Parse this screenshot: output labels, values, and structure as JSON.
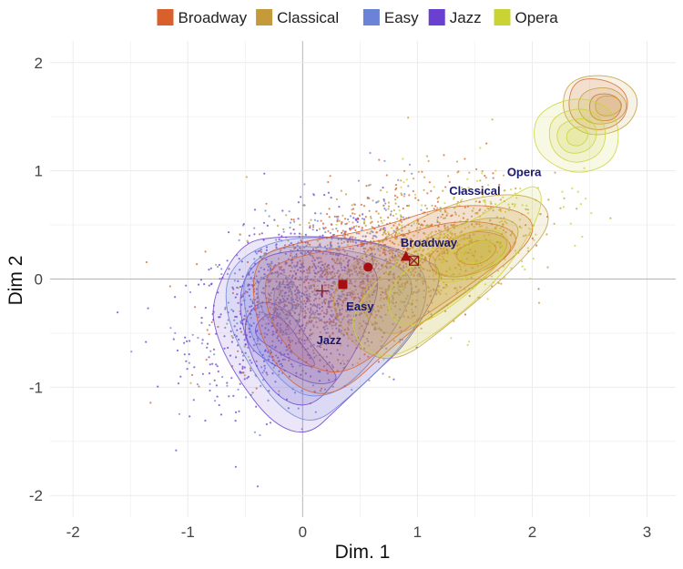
{
  "chart_data": {
    "type": "scatter",
    "title": "",
    "xlabel": "Dim. 1",
    "ylabel": "Dim 2",
    "xlim": [
      -2.2,
      3.25
    ],
    "ylim": [
      -2.2,
      2.2
    ],
    "x_ticks": [
      -2,
      -1,
      0,
      1,
      2,
      3
    ],
    "y_ticks": [
      -2,
      -1,
      0,
      1,
      2
    ],
    "x_tick_labels": [
      "-2",
      "-1",
      "0",
      "1",
      "2",
      "3"
    ],
    "y_tick_labels": [
      "-2",
      "-1",
      "0",
      "1",
      "2"
    ],
    "grid": true,
    "legend_position": "top",
    "series": [
      {
        "name": "Broadway",
        "color": "#d9602b",
        "centroid": [
          0.9,
          0.21
        ],
        "marker": "triangle"
      },
      {
        "name": "Classical",
        "color": "#c49a3a",
        "centroid": [
          0.57,
          0.11
        ],
        "marker": "circle"
      },
      {
        "name": "Easy",
        "color": "#6b83d6",
        "centroid": [
          0.35,
          -0.05
        ],
        "marker": "square"
      },
      {
        "name": "Jazz",
        "color": "#6a40d0",
        "centroid": [
          0.17,
          -0.11
        ],
        "marker": "plus"
      },
      {
        "name": "Opera",
        "color": "#c9d334",
        "centroid": [
          0.97,
          0.17
        ],
        "marker": "crossed-square"
      }
    ],
    "annotations": [
      {
        "text": "Opera",
        "x": 1.93,
        "y": 0.95
      },
      {
        "text": "Classical",
        "x": 1.5,
        "y": 0.78
      },
      {
        "text": "Broadway",
        "x": 1.1,
        "y": 0.3
      },
      {
        "text": "Easy",
        "x": 0.5,
        "y": -0.29
      },
      {
        "text": "Jazz",
        "x": 0.23,
        "y": -0.6
      }
    ],
    "density_contours": [
      {
        "series": "Jazz",
        "color": "#6a40d0",
        "levels": [
          [
            [
              -0.8,
              -0.2
            ],
            [
              -0.55,
              0.33
            ],
            [
              -0.2,
              0.4
            ],
            [
              0.5,
              0.38
            ],
            [
              1.05,
              0.2
            ],
            [
              1.25,
              0.05
            ],
            [
              0.95,
              -0.55
            ],
            [
              0.6,
              -0.9
            ],
            [
              0.3,
              -1.2
            ],
            [
              0.05,
              -1.45
            ],
            [
              -0.25,
              -1.35
            ],
            [
              -0.55,
              -0.95
            ],
            [
              -0.75,
              -0.55
            ]
          ],
          [
            [
              -0.58,
              -0.15
            ],
            [
              -0.4,
              0.2
            ],
            [
              0.0,
              0.28
            ],
            [
              0.45,
              0.22
            ],
            [
              0.7,
              0.05
            ],
            [
              0.55,
              -0.5
            ],
            [
              0.3,
              -0.95
            ],
            [
              0.05,
              -1.2
            ],
            [
              -0.22,
              -1.1
            ],
            [
              -0.45,
              -0.75
            ]
          ],
          [
            [
              -0.5,
              -0.35
            ],
            [
              -0.35,
              -0.18
            ],
            [
              -0.1,
              -0.3
            ],
            [
              0.08,
              -0.62
            ],
            [
              0.28,
              -0.85
            ],
            [
              0.3,
              -0.95
            ],
            [
              0.1,
              -0.98
            ],
            [
              -0.15,
              -0.85
            ],
            [
              -0.4,
              -0.7
            ],
            [
              -0.5,
              -0.55
            ]
          ],
          [
            [
              -0.4,
              -0.4
            ],
            [
              -0.28,
              -0.3
            ],
            [
              -0.12,
              -0.42
            ],
            [
              0.0,
              -0.62
            ],
            [
              0.12,
              -0.78
            ],
            [
              0.08,
              -0.82
            ],
            [
              -0.1,
              -0.75
            ],
            [
              -0.3,
              -0.62
            ],
            [
              -0.42,
              -0.52
            ]
          ]
        ]
      },
      {
        "series": "Easy",
        "color": "#6b83d6",
        "levels": [
          [
            [
              -0.65,
              0.1
            ],
            [
              -0.3,
              0.35
            ],
            [
              0.2,
              0.4
            ],
            [
              0.8,
              0.3
            ],
            [
              1.1,
              0.05
            ],
            [
              1.05,
              -0.35
            ],
            [
              0.8,
              -0.7
            ],
            [
              0.4,
              -1.1
            ],
            [
              0.1,
              -1.35
            ],
            [
              -0.2,
              -1.2
            ],
            [
              -0.5,
              -0.75
            ],
            [
              -0.68,
              -0.3
            ]
          ],
          [
            [
              -0.55,
              0.05
            ],
            [
              -0.25,
              0.3
            ],
            [
              0.2,
              0.3
            ],
            [
              0.7,
              0.2
            ],
            [
              1.0,
              0.0
            ],
            [
              0.85,
              -0.4
            ],
            [
              0.5,
              -0.9
            ],
            [
              0.2,
              -1.1
            ],
            [
              -0.1,
              -1.05
            ],
            [
              -0.45,
              -0.6
            ]
          ],
          [
            [
              -0.4,
              0.0
            ],
            [
              -0.2,
              0.08
            ],
            [
              -0.05,
              -0.05
            ],
            [
              0.0,
              -0.3
            ],
            [
              -0.1,
              -0.55
            ],
            [
              -0.25,
              -0.45
            ],
            [
              -0.38,
              -0.25
            ]
          ],
          [
            [
              -0.25,
              -0.05
            ],
            [
              -0.1,
              -0.05
            ],
            [
              -0.08,
              -0.25
            ],
            [
              -0.15,
              -0.4
            ],
            [
              -0.25,
              -0.3
            ]
          ]
        ]
      },
      {
        "series": "Broadway",
        "color": "#d9602b",
        "levels": [
          [
            [
              -0.45,
              0.2
            ],
            [
              0.0,
              0.35
            ],
            [
              0.6,
              0.45
            ],
            [
              1.3,
              0.7
            ],
            [
              1.9,
              0.65
            ],
            [
              2.05,
              0.45
            ],
            [
              1.8,
              0.15
            ],
            [
              1.3,
              -0.2
            ],
            [
              0.8,
              -0.6
            ],
            [
              0.3,
              -1.1
            ],
            [
              -0.1,
              -1.0
            ],
            [
              -0.4,
              -0.5
            ]
          ],
          [
            [
              -0.35,
              0.1
            ],
            [
              0.1,
              0.25
            ],
            [
              0.7,
              0.35
            ],
            [
              1.3,
              0.55
            ],
            [
              1.8,
              0.5
            ],
            [
              1.9,
              0.3
            ],
            [
              1.4,
              -0.1
            ],
            [
              0.9,
              -0.45
            ],
            [
              0.4,
              -0.9
            ],
            [
              0.0,
              -0.8
            ],
            [
              -0.3,
              -0.4
            ]
          ],
          [
            [
              1.05,
              0.2
            ],
            [
              1.4,
              0.45
            ],
            [
              1.75,
              0.42
            ],
            [
              1.85,
              0.25
            ],
            [
              1.55,
              0.05
            ],
            [
              1.2,
              0.0
            ]
          ],
          [
            [
              1.3,
              0.25
            ],
            [
              1.55,
              0.38
            ],
            [
              1.72,
              0.3
            ],
            [
              1.6,
              0.15
            ],
            [
              1.4,
              0.12
            ]
          ],
          [
            [
              2.35,
              1.85
            ],
            [
              2.65,
              1.85
            ],
            [
              2.85,
              1.7
            ],
            [
              2.8,
              1.45
            ],
            [
              2.55,
              1.35
            ],
            [
              2.3,
              1.5
            ]
          ],
          [
            [
              2.5,
              1.7
            ],
            [
              2.7,
              1.72
            ],
            [
              2.8,
              1.6
            ],
            [
              2.7,
              1.45
            ],
            [
              2.5,
              1.48
            ]
          ]
        ]
      },
      {
        "series": "Classical",
        "color": "#c49a3a",
        "levels": [
          [
            [
              0.2,
              -0.1
            ],
            [
              0.7,
              0.4
            ],
            [
              1.4,
              0.75
            ],
            [
              2.0,
              0.8
            ],
            [
              2.2,
              0.55
            ],
            [
              1.9,
              0.15
            ],
            [
              1.3,
              -0.4
            ],
            [
              0.8,
              -0.8
            ],
            [
              0.4,
              -0.6
            ]
          ],
          [
            [
              0.5,
              -0.05
            ],
            [
              1.0,
              0.35
            ],
            [
              1.6,
              0.6
            ],
            [
              1.95,
              0.5
            ],
            [
              1.7,
              0.1
            ],
            [
              1.2,
              -0.3
            ],
            [
              0.8,
              -0.55
            ],
            [
              0.55,
              -0.4
            ]
          ],
          [
            [
              1.1,
              0.15
            ],
            [
              1.4,
              0.45
            ],
            [
              1.75,
              0.45
            ],
            [
              1.8,
              0.25
            ],
            [
              1.5,
              0.05
            ],
            [
              1.25,
              0.0
            ]
          ],
          [
            [
              2.3,
              1.85
            ],
            [
              2.7,
              1.9
            ],
            [
              2.95,
              1.7
            ],
            [
              2.85,
              1.4
            ],
            [
              2.5,
              1.3
            ],
            [
              2.25,
              1.5
            ]
          ],
          [
            [
              2.45,
              1.75
            ],
            [
              2.7,
              1.78
            ],
            [
              2.85,
              1.62
            ],
            [
              2.75,
              1.45
            ],
            [
              2.5,
              1.42
            ],
            [
              2.38,
              1.58
            ]
          ],
          [
            [
              2.55,
              1.68
            ],
            [
              2.72,
              1.7
            ],
            [
              2.8,
              1.6
            ],
            [
              2.7,
              1.5
            ],
            [
              2.55,
              1.52
            ]
          ]
        ]
      },
      {
        "series": "Opera",
        "color": "#c9d334",
        "levels": [
          [
            [
              0.4,
              -0.3
            ],
            [
              0.9,
              0.25
            ],
            [
              1.5,
              0.55
            ],
            [
              1.8,
              0.75
            ],
            [
              2.05,
              0.9
            ],
            [
              2.1,
              0.65
            ],
            [
              1.8,
              0.1
            ],
            [
              1.3,
              -0.4
            ],
            [
              0.8,
              -0.75
            ],
            [
              0.5,
              -0.65
            ]
          ],
          [
            [
              0.7,
              -0.1
            ],
            [
              1.2,
              0.35
            ],
            [
              1.65,
              0.5
            ],
            [
              1.85,
              0.35
            ],
            [
              1.55,
              -0.05
            ],
            [
              1.1,
              -0.4
            ],
            [
              0.8,
              -0.45
            ]
          ],
          [
            [
              1.15,
              0.1
            ],
            [
              1.45,
              0.4
            ],
            [
              1.75,
              0.4
            ],
            [
              1.75,
              0.2
            ],
            [
              1.45,
              0.0
            ],
            [
              1.2,
              -0.05
            ]
          ],
          [
            [
              1.3,
              0.2
            ],
            [
              1.55,
              0.38
            ],
            [
              1.7,
              0.3
            ],
            [
              1.55,
              0.12
            ]
          ],
          [
            [
              2.05,
              1.55
            ],
            [
              2.4,
              1.7
            ],
            [
              2.75,
              1.55
            ],
            [
              2.75,
              1.1
            ],
            [
              2.4,
              0.95
            ],
            [
              2.1,
              1.1
            ],
            [
              2.0,
              1.3
            ]
          ],
          [
            [
              2.15,
              1.5
            ],
            [
              2.45,
              1.6
            ],
            [
              2.65,
              1.45
            ],
            [
              2.62,
              1.15
            ],
            [
              2.35,
              1.05
            ],
            [
              2.15,
              1.2
            ]
          ],
          [
            [
              2.25,
              1.45
            ],
            [
              2.5,
              1.5
            ],
            [
              2.58,
              1.35
            ],
            [
              2.5,
              1.18
            ],
            [
              2.3,
              1.15
            ],
            [
              2.2,
              1.3
            ]
          ],
          [
            [
              2.3,
              1.38
            ],
            [
              2.45,
              1.42
            ],
            [
              2.5,
              1.32
            ],
            [
              2.42,
              1.22
            ],
            [
              2.3,
              1.25
            ]
          ]
        ]
      }
    ],
    "scatter_clouds": [
      {
        "series": "Jazz",
        "n": 650,
        "cx": -0.15,
        "cy": -0.25,
        "sx": 0.42,
        "sy": 0.42,
        "corr": 0.35
      },
      {
        "series": "Easy",
        "n": 650,
        "cx": 0.2,
        "cy": -0.1,
        "sx": 0.45,
        "sy": 0.42,
        "corr": 0.4
      },
      {
        "series": "Broadway",
        "n": 600,
        "cx": 0.5,
        "cy": 0.1,
        "sx": 0.55,
        "sy": 0.42,
        "corr": 0.5
      },
      {
        "series": "Classical",
        "n": 600,
        "cx": 0.7,
        "cy": 0.15,
        "sx": 0.6,
        "sy": 0.42,
        "corr": 0.55
      },
      {
        "series": "Opera",
        "n": 450,
        "cx": 1.1,
        "cy": 0.2,
        "sx": 0.55,
        "sy": 0.38,
        "corr": 0.6
      }
    ]
  }
}
